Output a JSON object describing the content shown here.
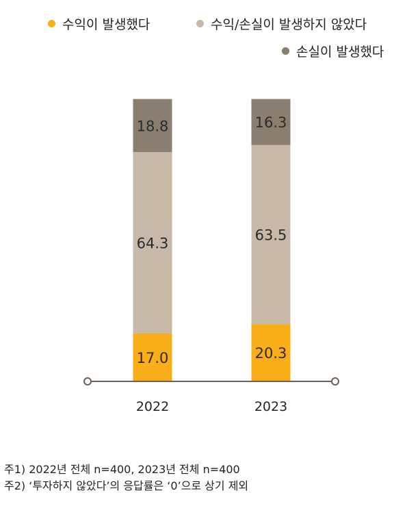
{
  "chart_data": {
    "type": "bar",
    "stacked": true,
    "categories": [
      "2022",
      "2023"
    ],
    "series": [
      {
        "name": "수익이 발생했다",
        "color": "#f9ad19",
        "values": [
          17.0,
          20.3
        ]
      },
      {
        "name": "수익/손실이 발생하지 않았다",
        "color": "#c7b8a7",
        "values": [
          64.3,
          63.5
        ]
      },
      {
        "name": "손실이 발생했다",
        "color": "#8a7e6f",
        "values": [
          18.8,
          16.3
        ]
      }
    ],
    "value_labels": [
      [
        "17.0",
        "20.3"
      ],
      [
        "64.3",
        "63.5"
      ],
      [
        "18.8",
        "16.3"
      ]
    ],
    "ylim": [
      0,
      100
    ],
    "grid": false,
    "legend_position": "top-right",
    "axis_color": "#6b5f55"
  },
  "notes": [
    "주1) 2022년 전체 n=400, 2023년 전체 n=400",
    "주2) ‘투자하지 않았다’의 응답률은 ‘0’으로 상기 제외"
  ]
}
